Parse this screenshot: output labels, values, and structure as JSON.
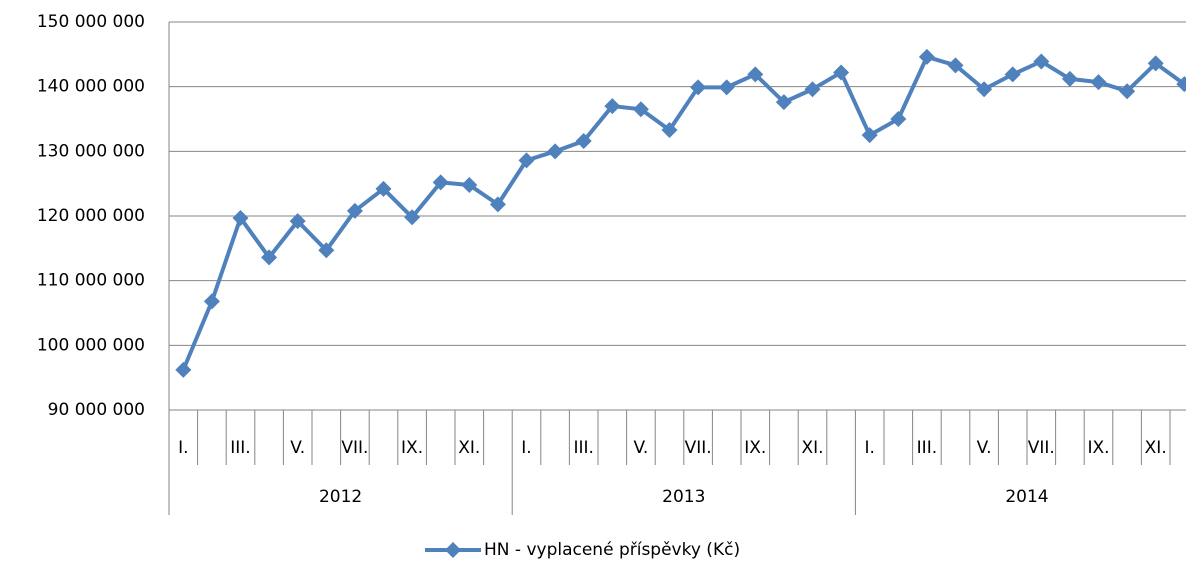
{
  "chart_data": {
    "type": "line",
    "categories": [
      "I.",
      null,
      "III.",
      null,
      "V.",
      null,
      "VII.",
      null,
      "IX.",
      null,
      "XI.",
      null,
      "I.",
      null,
      "III.",
      null,
      "V.",
      null,
      "VII.",
      null,
      "IX.",
      null,
      "XI.",
      null,
      "I.",
      null,
      "III.",
      null,
      "V.",
      null,
      "VII.",
      null,
      "IX.",
      null,
      "XI.",
      null
    ],
    "year_groups": [
      "2012",
      "2013",
      "2014"
    ],
    "series": [
      {
        "name": "HN - vyplacené příspěvky (Kč)",
        "color": "#4f81bd",
        "values": [
          96200000,
          106800000,
          119700000,
          113600000,
          119200000,
          114700000,
          120800000,
          124200000,
          119800000,
          125200000,
          124800000,
          121800000,
          128600000,
          130000000,
          131600000,
          137000000,
          136500000,
          133300000,
          139900000,
          139900000,
          141900000,
          137600000,
          139600000,
          142200000,
          132500000,
          135000000,
          144600000,
          143300000,
          139600000,
          141900000,
          143900000,
          141200000,
          140700000,
          139300000,
          143600000,
          140400000
        ]
      }
    ],
    "ylim": [
      90000000,
      150000000
    ],
    "yticks": [
      {
        "value": 90000000,
        "label": "90 000 000"
      },
      {
        "value": 100000000,
        "label": "100 000 000"
      },
      {
        "value": 110000000,
        "label": "110 000 000"
      },
      {
        "value": 120000000,
        "label": "120 000 000"
      },
      {
        "value": 130000000,
        "label": "130 000 000"
      },
      {
        "value": 140000000,
        "label": "140 000 000"
      },
      {
        "value": 150000000,
        "label": "150 000 000"
      }
    ],
    "grid": true,
    "legend": "bottom"
  }
}
